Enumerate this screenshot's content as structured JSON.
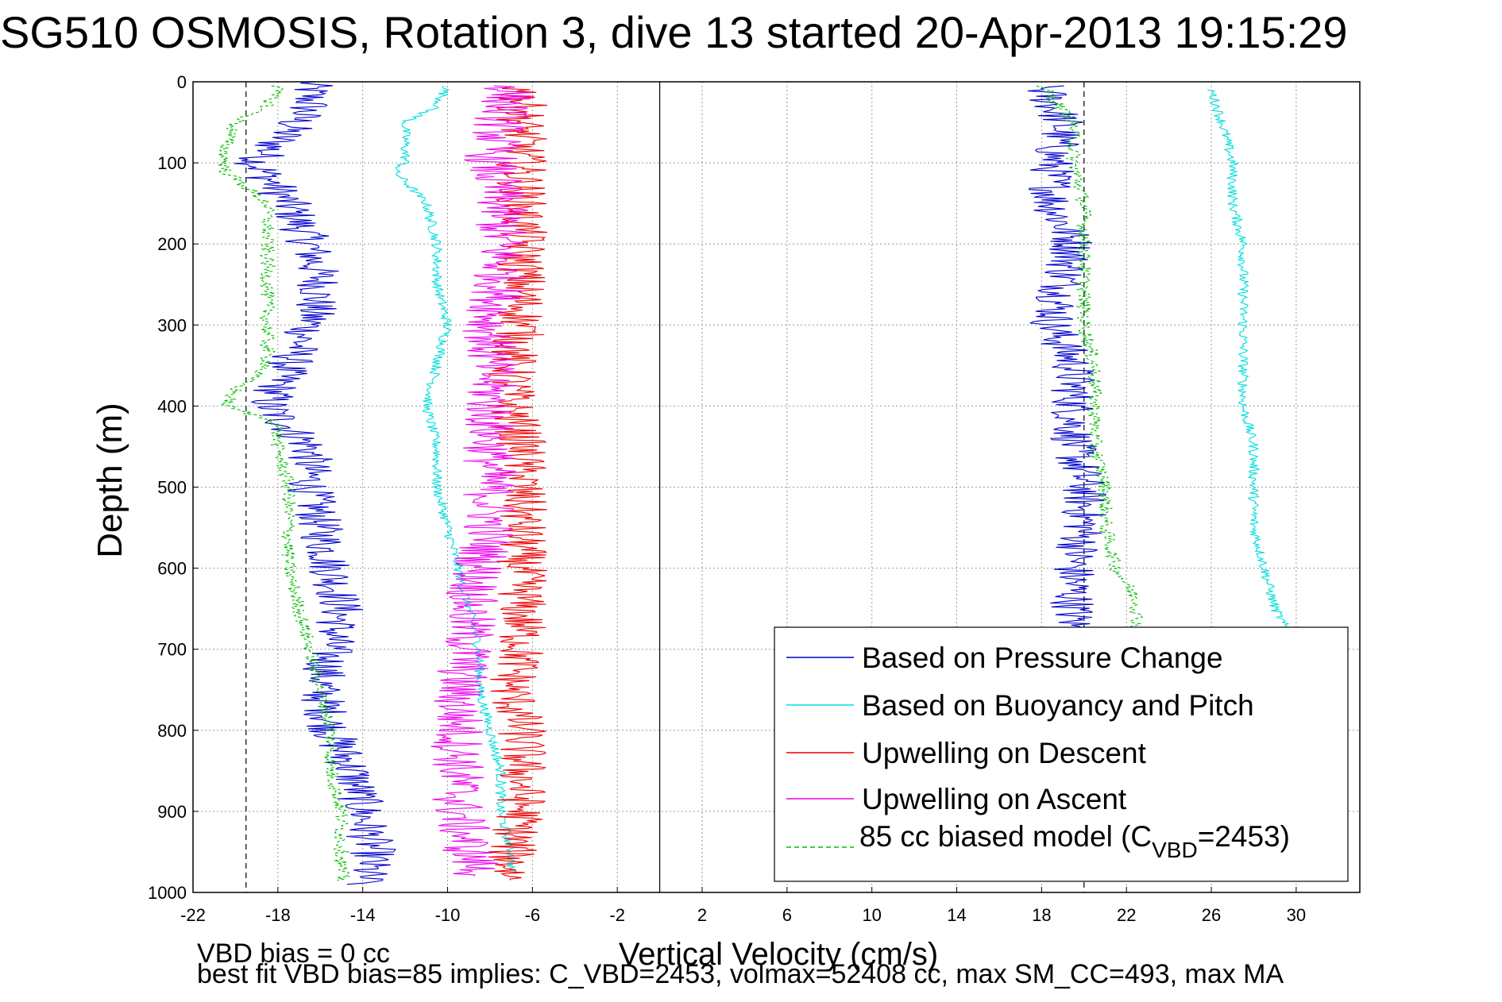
{
  "title": "SG510 OSMOSIS, Rotation 3, dive 13 started 20-Apr-2013 19:15:29",
  "footer": {
    "line1": "VBD bias = 0 cc",
    "line2": "best fit VBD bias=85 implies: C_VBD=2453, volmax=52408 cc, max SM_CC=493, max MA"
  },
  "chart_data": {
    "type": "line",
    "xlabel": "Vertical Velocity (cm/s)",
    "ylabel": "Depth (m)",
    "xlim": [
      -22,
      33
    ],
    "ylim": [
      1000,
      0
    ],
    "grid": true,
    "legend_position": "bottom-right",
    "x_ticks": [
      -22,
      -18,
      -14,
      -10,
      -6,
      -2,
      2,
      6,
      10,
      14,
      18,
      22,
      26,
      30
    ],
    "y_ticks": [
      0,
      100,
      200,
      300,
      400,
      500,
      600,
      700,
      800,
      900,
      1000
    ],
    "reference_lines": [
      {
        "x": 0,
        "style": "solid"
      },
      {
        "x": -19.5,
        "style": "dashed"
      },
      {
        "x": 20,
        "style": "dashed"
      }
    ],
    "legend_labels": {
      "pressure": "Based on Pressure Change",
      "buoyancy": "Based on Buoyancy and Pitch",
      "up_descent": "Upwelling on Descent",
      "up_ascent": "Upwelling on Ascent",
      "model_main": "85 cc biased model (C",
      "model_sub": "VBD",
      "model_tail": "=2453)"
    },
    "series": [
      {
        "key": "pressure",
        "name": "Based on Pressure Change",
        "color": "#0000cc",
        "style": "solid",
        "noise": 1.1,
        "branches": [
          {
            "depth": [
              0,
              30,
              60,
              100,
              150,
              200,
              250,
              300,
              350,
              400,
              450,
              500,
              550,
              600,
              650,
              700,
              750,
              800,
              850,
              900,
              950,
              990
            ],
            "v": [
              -16.5,
              -16.5,
              -17.5,
              -19,
              -17.5,
              -16.5,
              -16,
              -16.5,
              -17.5,
              -18.5,
              -16.5,
              -16.5,
              -16,
              -15.5,
              -15,
              -15.5,
              -16,
              -15.5,
              -14.5,
              -14,
              -13.5,
              -14
            ]
          },
          {
            "depth": [
              5,
              50,
              100,
              150,
              200,
              250,
              300,
              350,
              400,
              450,
              500,
              550,
              600,
              650,
              675
            ],
            "v": [
              18,
              19,
              18.5,
              18.5,
              19.5,
              19,
              18.5,
              19.5,
              19.5,
              19.5,
              20,
              20,
              19.5,
              19.5,
              19.5
            ]
          }
        ]
      },
      {
        "key": "buoyancy",
        "name": "Based on Buoyancy and Pitch",
        "color": "#00dddd",
        "style": "solid",
        "noise": 0.25,
        "branches": [
          {
            "depth": [
              5,
              30,
              50,
              100,
              110,
              150,
              200,
              250,
              300,
              350,
              400,
              450,
              500,
              550,
              600,
              650,
              700,
              750,
              800,
              850,
              900,
              950,
              975
            ],
            "v": [
              -10,
              -10.5,
              -12,
              -12,
              -12.5,
              -11,
              -10.5,
              -10.5,
              -10,
              -10.5,
              -11,
              -10.5,
              -10.5,
              -10,
              -9.5,
              -9,
              -8.5,
              -8.5,
              -8,
              -7.5,
              -7.5,
              -7,
              -7
            ]
          },
          {
            "depth": [
              10,
              50,
              100,
              150,
              200,
              250,
              300,
              350,
              400,
              450,
              500,
              550,
              600,
              650,
              675
            ],
            "v": [
              26,
              26.5,
              27,
              27,
              27.5,
              27.5,
              27.5,
              27.5,
              27.5,
              28,
              28,
              28,
              28.5,
              29,
              29.5
            ]
          }
        ]
      },
      {
        "key": "up_descent",
        "name": "Upwelling on Descent",
        "color": "#ee0000",
        "style": "solid",
        "noise": 1.2,
        "branches": [
          {
            "depth": [
              5,
              50,
              100,
              150,
              200,
              250,
              300,
              350,
              400,
              450,
              500,
              550,
              600,
              650,
              700,
              750,
              800,
              850,
              900,
              950,
              985
            ],
            "v": [
              -6.5,
              -6.5,
              -6.5,
              -6.5,
              -6.5,
              -6.5,
              -6.5,
              -7,
              -7,
              -6.5,
              -6.5,
              -6.5,
              -6.5,
              -6.5,
              -6.5,
              -7,
              -6.5,
              -6.5,
              -6.5,
              -7,
              -7
            ]
          }
        ]
      },
      {
        "key": "up_ascent",
        "name": "Upwelling on Ascent",
        "color": "#ee00ee",
        "style": "solid",
        "noise": 1.3,
        "branches": [
          {
            "depth": [
              5,
              50,
              100,
              150,
              200,
              250,
              300,
              350,
              400,
              450,
              500,
              550,
              600,
              650,
              700,
              750,
              800,
              850,
              900,
              950,
              980
            ],
            "v": [
              -7,
              -7.5,
              -8,
              -7.5,
              -7.5,
              -7.5,
              -8,
              -8,
              -8,
              -8,
              -8,
              -8,
              -8.5,
              -9,
              -9,
              -9.5,
              -9.5,
              -9.5,
              -9.5,
              -9,
              -8.5
            ]
          }
        ]
      },
      {
        "key": "model",
        "name": "85 cc biased model (CVBD=2453)",
        "color": "#00bb00",
        "style": "dashed",
        "noise": 0.35,
        "branches": [
          {
            "depth": [
              5,
              30,
              50,
              80,
              110,
              150,
              200,
              250,
              300,
              350,
              380,
              400,
              420,
              450,
              500,
              550,
              600,
              650,
              700,
              750,
              800,
              850,
              900,
              950,
              985
            ],
            "v": [
              -18,
              -18.5,
              -20,
              -20.5,
              -20.5,
              -18.5,
              -18.5,
              -18.5,
              -18.5,
              -18.5,
              -20,
              -20.5,
              -18,
              -18,
              -17.5,
              -17.5,
              -17.5,
              -17,
              -16.5,
              -16,
              -15.5,
              -15.5,
              -15,
              -15,
              -15
            ]
          },
          {
            "depth": [
              5,
              50,
              100,
              150,
              200,
              250,
              300,
              350,
              400,
              450,
              500,
              550,
              600,
              640,
              675
            ],
            "v": [
              18,
              19.5,
              19.5,
              20,
              20,
              20,
              20,
              20.5,
              20.5,
              20.5,
              21,
              21,
              21.5,
              22.5,
              22.5
            ]
          }
        ]
      }
    ]
  }
}
